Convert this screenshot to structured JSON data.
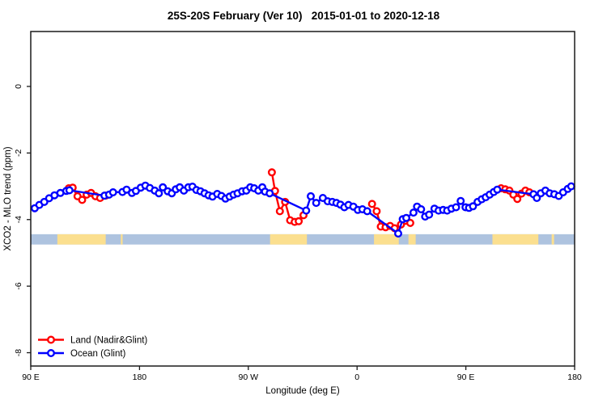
{
  "title": "25S-20S February (Ver 10)   2015-01-01 to 2020-12-18",
  "chart_data": {
    "type": "line",
    "title": "25S-20S February (Ver 10)   2015-01-01 to 2020-12-18",
    "xlabel": "Longitude (deg E)",
    "ylabel": "XCO2 - MLO trend (ppm)",
    "xlim": [
      90,
      540
    ],
    "ylim": [
      -8.4,
      1.65
    ],
    "grid": false,
    "x_ticks": [
      {
        "lon": 90,
        "label": "90 E"
      },
      {
        "lon": 180,
        "label": "180"
      },
      {
        "lon": 270,
        "label": "90 W"
      },
      {
        "lon": 360,
        "label": "0"
      },
      {
        "lon": 450,
        "label": "90 E"
      },
      {
        "lon": 540,
        "label": "180"
      }
    ],
    "y_ticks": [
      0,
      -2,
      -4,
      -6,
      -8
    ],
    "colors": {
      "land_series": "#ff0000",
      "ocean_series": "#0000ff",
      "band_ocean": "#aec3df",
      "band_land": "#fbdf8f",
      "axis": "#1a1a1a"
    },
    "band": {
      "description": "surface-type strip: ocean base with land segments",
      "value_top": -4.44,
      "value_bottom": -4.75,
      "land_segments_lon": [
        [
          112,
          152
        ],
        [
          164.5,
          166
        ],
        [
          288,
          318.5
        ],
        [
          374,
          394.5
        ],
        [
          402.5,
          408.5
        ],
        [
          472,
          510
        ],
        [
          521,
          523
        ]
      ]
    },
    "legend": {
      "position": "bottom-left",
      "entries": [
        {
          "label": "Land (Nadir&Glint)",
          "color": "#ff0000"
        },
        {
          "label": "Ocean (Glint)",
          "color": "#0000ff"
        }
      ]
    },
    "series": [
      {
        "name": "Land (Nadir&Glint)",
        "color": "#ff0000",
        "segments": [
          [
            [
              121.5,
              -3.06
            ],
            [
              124.7,
              -3.04
            ],
            [
              128.7,
              -3.3
            ],
            [
              132.5,
              -3.41
            ],
            [
              136.3,
              -3.25
            ],
            [
              139.9,
              -3.2
            ],
            [
              143.6,
              -3.3
            ],
            [
              147.4,
              -3.35
            ],
            [
              152.0,
              -3.28
            ]
          ],
          [
            [
              289.5,
              -2.58
            ],
            [
              292.1,
              -3.14
            ],
            [
              296.1,
              -3.75
            ],
            [
              300.5,
              -3.47
            ],
            [
              304.6,
              -4.02
            ],
            [
              308.4,
              -4.07
            ],
            [
              311.7,
              -4.05
            ],
            [
              315.7,
              -3.87
            ]
          ],
          [
            [
              372.4,
              -3.53
            ],
            [
              376.2,
              -3.75
            ],
            [
              379.6,
              -4.21
            ],
            [
              383.6,
              -4.23
            ],
            [
              387.3,
              -4.19
            ],
            [
              391.1,
              -4.26
            ],
            [
              396.3,
              -4.15
            ],
            [
              404.0,
              -4.1
            ]
          ],
          [
            [
              479.1,
              -3.06
            ],
            [
              482.6,
              -3.09
            ],
            [
              486.0,
              -3.13
            ],
            [
              489.3,
              -3.25
            ],
            [
              492.6,
              -3.38
            ],
            [
              496.0,
              -3.22
            ],
            [
              499.3,
              -3.13
            ],
            [
              502.6,
              -3.18
            ]
          ]
        ]
      },
      {
        "name": "Ocean (Glint)",
        "color": "#0000ff",
        "segments": [
          [
            [
              93.3,
              -3.66
            ],
            [
              97.1,
              -3.56
            ],
            [
              101.2,
              -3.47
            ],
            [
              105.2,
              -3.36
            ],
            [
              109.6,
              -3.27
            ],
            [
              114.5,
              -3.2
            ],
            [
              119.4,
              -3.14
            ],
            [
              122.0,
              -3.12
            ],
            [
              151.0,
              -3.28
            ],
            [
              154.8,
              -3.25
            ],
            [
              158.1,
              -3.18
            ],
            [
              165.9,
              -3.17
            ],
            [
              169.3,
              -3.1
            ],
            [
              173.7,
              -3.2
            ],
            [
              177.0,
              -3.14
            ],
            [
              181.0,
              -3.04
            ],
            [
              184.8,
              -2.98
            ],
            [
              188.5,
              -3.05
            ],
            [
              192.6,
              -3.13
            ],
            [
              196.0,
              -3.21
            ],
            [
              199.3,
              -3.03
            ],
            [
              203.3,
              -3.15
            ],
            [
              206.7,
              -3.21
            ],
            [
              210.0,
              -3.09
            ],
            [
              213.3,
              -3.03
            ],
            [
              216.7,
              -3.13
            ],
            [
              220.4,
              -3.03
            ],
            [
              223.8,
              -3.01
            ],
            [
              227.1,
              -3.11
            ],
            [
              230.4,
              -3.15
            ],
            [
              233.8,
              -3.21
            ],
            [
              237.1,
              -3.27
            ],
            [
              240.4,
              -3.31
            ],
            [
              244.3,
              -3.23
            ],
            [
              247.8,
              -3.29
            ],
            [
              251.1,
              -3.37
            ],
            [
              254.5,
              -3.31
            ],
            [
              257.8,
              -3.25
            ],
            [
              261.1,
              -3.21
            ],
            [
              264.9,
              -3.15
            ],
            [
              268.3,
              -3.13
            ],
            [
              271.6,
              -3.03
            ],
            [
              274.9,
              -3.06
            ],
            [
              278.3,
              -3.13
            ],
            [
              281.6,
              -3.03
            ],
            [
              283.8,
              -3.16
            ],
            [
              287.7,
              -3.21
            ],
            [
              317.9,
              -3.73
            ],
            [
              321.7,
              -3.3
            ],
            [
              326.2,
              -3.5
            ],
            [
              331.7,
              -3.35
            ],
            [
              335.7,
              -3.45
            ],
            [
              339.5,
              -3.47
            ],
            [
              342.9,
              -3.5
            ],
            [
              346.2,
              -3.55
            ],
            [
              349.5,
              -3.63
            ],
            [
              352.9,
              -3.56
            ],
            [
              356.9,
              -3.61
            ],
            [
              360.6,
              -3.71
            ],
            [
              364.4,
              -3.69
            ],
            [
              368.4,
              -3.75
            ],
            [
              394.0,
              -4.42
            ],
            [
              397.8,
              -3.99
            ],
            [
              400.7,
              -3.95
            ],
            [
              406.7,
              -3.79
            ],
            [
              409.6,
              -3.61
            ],
            [
              413.0,
              -3.69
            ],
            [
              416.3,
              -3.91
            ],
            [
              419.6,
              -3.85
            ],
            [
              424.0,
              -3.67
            ],
            [
              427.4,
              -3.73
            ],
            [
              431.2,
              -3.71
            ],
            [
              434.5,
              -3.73
            ],
            [
              438.1,
              -3.67
            ],
            [
              441.9,
              -3.63
            ],
            [
              445.7,
              -3.44
            ],
            [
              449.7,
              -3.63
            ],
            [
              452.6,
              -3.65
            ],
            [
              455.9,
              -3.6
            ],
            [
              459.7,
              -3.47
            ],
            [
              463.1,
              -3.39
            ],
            [
              466.4,
              -3.33
            ],
            [
              469.7,
              -3.25
            ],
            [
              473.1,
              -3.17
            ],
            [
              476.0,
              -3.1
            ],
            [
              506.0,
              -3.24
            ],
            [
              508.7,
              -3.35
            ],
            [
              512.0,
              -3.21
            ],
            [
              515.8,
              -3.13
            ],
            [
              519.4,
              -3.21
            ],
            [
              523.2,
              -3.24
            ],
            [
              526.9,
              -3.29
            ],
            [
              530.5,
              -3.18
            ],
            [
              534.3,
              -3.08
            ],
            [
              537.2,
              -3.0
            ]
          ]
        ]
      }
    ]
  }
}
